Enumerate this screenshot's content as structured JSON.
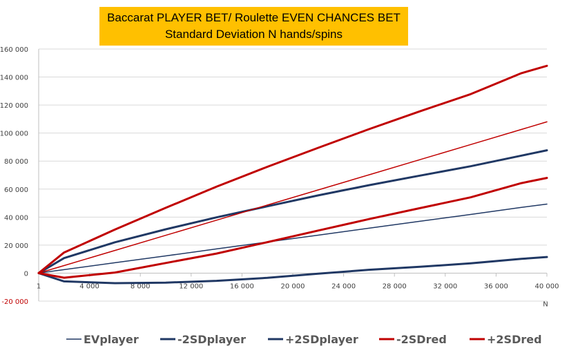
{
  "colors": {
    "player": "#203864",
    "red": "#C00000",
    "title_bg": "#FFC000",
    "negative_tick": "#C00000"
  },
  "chart_data": {
    "type": "line",
    "title": [
      "Baccarat PLAYER BET/ Roulette EVEN CHANCES BET",
      "Standard Deviation  N hands/spins"
    ],
    "xlabel": "N",
    "ylabel": "",
    "xlim": [
      0,
      40000
    ],
    "ylim": [
      -20000,
      160000
    ],
    "grid": "horizontal",
    "legend_position": "bottom",
    "x_ticks": [
      {
        "value": 0,
        "label": "1"
      },
      {
        "value": 4000,
        "label": "4 000"
      },
      {
        "value": 8000,
        "label": "8 000"
      },
      {
        "value": 12000,
        "label": "12 000"
      },
      {
        "value": 16000,
        "label": "16 000"
      },
      {
        "value": 20000,
        "label": "20 000"
      },
      {
        "value": 24000,
        "label": "24 000"
      },
      {
        "value": 28000,
        "label": "28 000"
      },
      {
        "value": 32000,
        "label": "32 000"
      },
      {
        "value": 36000,
        "label": "36 000"
      },
      {
        "value": 40000,
        "label": "40 000"
      }
    ],
    "y_ticks": [
      {
        "value": 160000,
        "label": "160 000"
      },
      {
        "value": 140000,
        "label": "140 000"
      },
      {
        "value": 120000,
        "label": "120 000"
      },
      {
        "value": 100000,
        "label": "100 000"
      },
      {
        "value": 80000,
        "label": "80 000"
      },
      {
        "value": 60000,
        "label": "60 000"
      },
      {
        "value": 40000,
        "label": "40 000"
      },
      {
        "value": 20000,
        "label": "20 000"
      },
      {
        "value": 0,
        "label": "0"
      },
      {
        "value": -20000,
        "label": "-20 000"
      }
    ],
    "x": [
      0,
      2000,
      6000,
      10000,
      14000,
      18000,
      22000,
      26000,
      30000,
      34000,
      38000,
      40000
    ],
    "series": [
      {
        "name": "EVplayer",
        "color": "#203864",
        "width": 1.5,
        "values": [
          0,
          2500,
          7400,
          12300,
          17300,
          22200,
          27100,
          32100,
          37000,
          41900,
          46900,
          49300
        ]
      },
      {
        "name": "-2SDplayer",
        "color": "#203864",
        "width": 3,
        "values": [
          0,
          -5900,
          -7200,
          -6800,
          -5500,
          -3400,
          -400,
          2400,
          4500,
          7000,
          10200,
          11500
        ]
      },
      {
        "name": "+2SDplayer",
        "color": "#203864",
        "width": 3,
        "values": [
          0,
          10700,
          22000,
          31300,
          39800,
          47700,
          55500,
          62800,
          69600,
          76300,
          83900,
          87700
        ]
      },
      {
        "name": "-2SDred",
        "color": "#C00000",
        "width": 3,
        "values": [
          0,
          -3300,
          400,
          7200,
          14000,
          22100,
          30400,
          38600,
          46400,
          54100,
          64300,
          68000
        ]
      },
      {
        "name": "+2SDred",
        "color": "#C00000",
        "width": 3,
        "values": [
          0,
          14700,
          31100,
          46600,
          61700,
          75900,
          89500,
          102800,
          115500,
          127800,
          142800,
          148000
        ]
      },
      {
        "name": "",
        "color": "#C00000",
        "width": 1.5,
        "values": [
          0,
          5400,
          16200,
          27000,
          37800,
          48600,
          59400,
          70200,
          81000,
          91800,
          102600,
          108000
        ]
      }
    ]
  }
}
